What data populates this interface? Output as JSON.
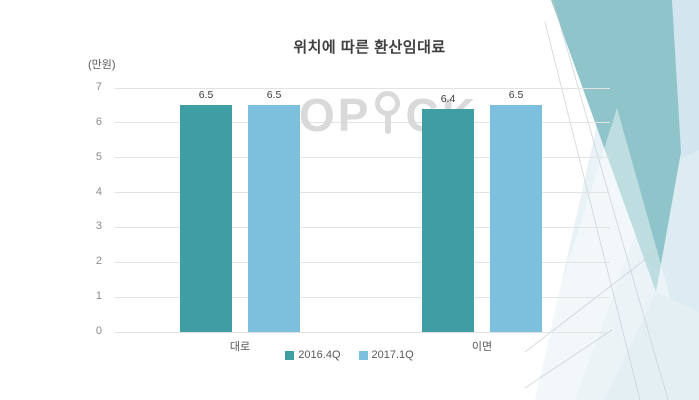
{
  "title": "위치에 따른 환산임대료",
  "unit_label": "(만원)",
  "watermark": {
    "left": "OP",
    "right": "CK",
    "pin_icon": "pin-i-letter"
  },
  "colors": {
    "series_2016_4q": "#3E9EA4",
    "series_2017_1q": "#7CC0DD",
    "gridline": "#e3e3e3",
    "tick_text": "#8c8c8c",
    "axis_text": "#595959",
    "title_text": "#3f3f3f",
    "watermark": "#d9d9d9",
    "decor_teal": "#8fc5ca",
    "decor_light_blue": "#e9f2f6"
  },
  "chart_data": {
    "type": "bar",
    "title": "위치에 따른 환산임대료",
    "categories": [
      "대로",
      "이면"
    ],
    "series": [
      {
        "name": "2016.4Q",
        "color": "#3E9EA4",
        "values": [
          6.5,
          6.4
        ]
      },
      {
        "name": "2017.1Q",
        "color": "#7CC0DD",
        "values": [
          6.5,
          6.5
        ]
      }
    ],
    "xlabel": "",
    "ylabel": "(만원)",
    "ylim": [
      0,
      7
    ],
    "yticks": [
      0,
      1,
      2,
      3,
      4,
      5,
      6,
      7
    ],
    "grid": true,
    "value_labels": true,
    "legend_position": "bottom"
  }
}
